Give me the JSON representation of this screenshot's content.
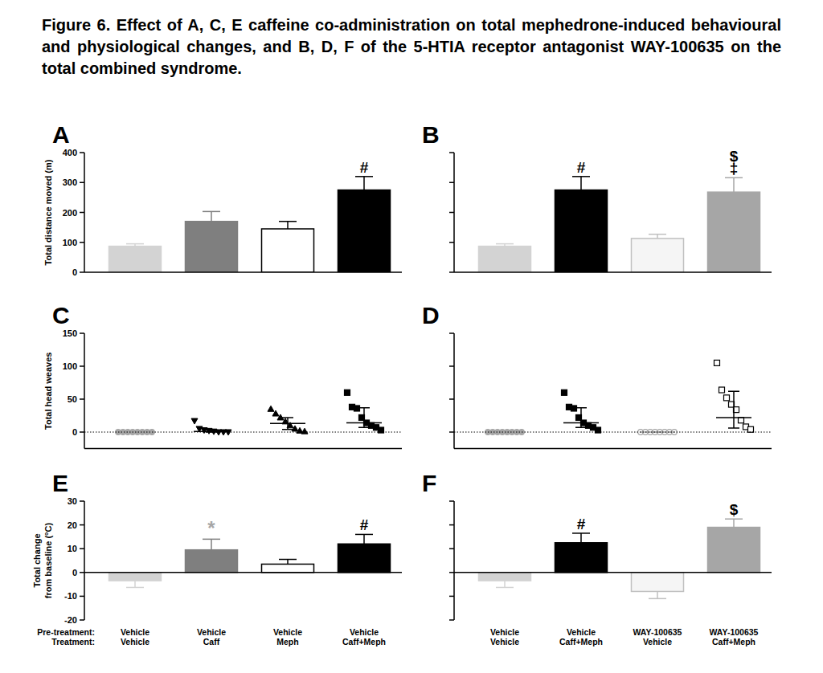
{
  "caption": "Figure 6. Effect of A, C, E caffeine co-administration on total mephedrone-induced behavioural and physiological changes, and B, D, F of the 5-HTIA receptor antagonist WAY-100635 on the total combined syndrome.",
  "chart_data": [
    {
      "type": "bar",
      "label": "A",
      "y_label": [
        "Total distance moved (m)"
      ],
      "categories": [
        "Vehicle",
        "Caff",
        "Meph",
        "Caff+Meph"
      ],
      "pretreatments": [
        "Vehicle",
        "Vehicle",
        "Vehicle",
        "Vehicle"
      ],
      "values": [
        87,
        170,
        145,
        275
      ],
      "errors": [
        8,
        33,
        25,
        45
      ],
      "colors": [
        "#d3d3d3",
        "#7f7f7f",
        "#ffffff",
        "#000000"
      ],
      "ylim": [
        0,
        400
      ],
      "yticks": [
        0,
        100,
        200,
        300,
        400
      ],
      "tick_labels": "y",
      "annotations": [
        null,
        null,
        null,
        {
          "lines": [
            "#"
          ],
          "color": "#000000"
        }
      ]
    },
    {
      "type": "bar",
      "label": "B",
      "categories": [
        "Vehicle",
        "Caff+Meph",
        "Vehicle",
        "Caff+Meph"
      ],
      "pretreatments": [
        "Vehicle",
        "Vehicle",
        "WAY-100635",
        "WAY-100635"
      ],
      "values": [
        87,
        275,
        113,
        268
      ],
      "errors": [
        8,
        45,
        14,
        48
      ],
      "colors": [
        "#d3d3d3",
        "#000000",
        "#f5f5f5",
        "#a6a6a6"
      ],
      "ylim": [
        0,
        400
      ],
      "yticks": [
        0,
        100,
        200,
        300,
        400
      ],
      "tick_labels": false,
      "annotations": [
        null,
        {
          "lines": [
            "#"
          ],
          "color": "#000000"
        },
        null,
        {
          "lines": [
            "$",
            "‡"
          ],
          "color": "#000000"
        }
      ]
    },
    {
      "type": "scatter",
      "label": "C",
      "y_label": [
        "Total head weaves"
      ],
      "categories": [
        "Vehicle",
        "Caff",
        "Meph",
        "Caff+Meph"
      ],
      "pretreatments": [
        "Vehicle",
        "Vehicle",
        "Vehicle",
        "Vehicle"
      ],
      "points": [
        [
          0,
          0,
          0,
          0,
          0,
          0,
          0,
          0
        ],
        [
          17,
          5,
          3,
          2,
          1,
          0,
          0,
          0
        ],
        [
          35,
          28,
          22,
          16,
          10,
          5,
          2,
          1
        ],
        [
          60,
          38,
          36,
          22,
          14,
          10,
          7,
          3
        ]
      ],
      "center": [
        0,
        1,
        13,
        14
      ],
      "error_low": [
        0,
        0,
        4,
        7
      ],
      "error_high": [
        0,
        4,
        22,
        37
      ],
      "colors": [
        "#a6a6a6",
        "#000000",
        "#000000",
        "#000000"
      ],
      "marker": [
        "circle",
        "triangle-down",
        "triangle-up",
        "square"
      ],
      "ylim": [
        -25,
        150
      ],
      "yticks": [
        0,
        50,
        100,
        150
      ],
      "tick_labels": "y"
    },
    {
      "type": "scatter",
      "label": "D",
      "categories": [
        "Vehicle",
        "Caff+Meph",
        "Vehicle",
        "Caff+Meph"
      ],
      "pretreatments": [
        "Vehicle",
        "Vehicle",
        "WAY-100635",
        "WAY-100635"
      ],
      "points": [
        [
          0,
          0,
          0,
          0,
          0,
          0,
          0,
          0
        ],
        [
          60,
          38,
          36,
          22,
          14,
          10,
          7,
          3
        ],
        [
          0,
          0,
          0,
          0,
          0,
          0,
          0,
          0
        ],
        [
          105,
          64,
          52,
          42,
          34,
          18,
          8,
          4
        ]
      ],
      "center": [
        0,
        14,
        0,
        22
      ],
      "error_low": [
        0,
        7,
        0,
        6
      ],
      "error_high": [
        0,
        37,
        0,
        62
      ],
      "colors": [
        "#a6a6a6",
        "#000000",
        "#a6a6a6",
        "#000000"
      ],
      "marker": [
        "circle",
        "square",
        "circle-open",
        "square-open"
      ],
      "ylim": [
        -25,
        150
      ],
      "yticks": [
        0,
        50,
        100,
        150
      ],
      "tick_labels": false
    },
    {
      "type": "bar",
      "label": "E",
      "y_label": [
        "Total change",
        "from baseline (°C)"
      ],
      "row_labels": [
        "Pre-treatment:",
        "Treatment:"
      ],
      "categories": [
        "Vehicle",
        "Caff",
        "Meph",
        "Caff+Meph"
      ],
      "pretreatments": [
        "Vehicle",
        "Vehicle",
        "Vehicle",
        "Vehicle"
      ],
      "values": [
        -3.5,
        9.5,
        3.5,
        12
      ],
      "errors": [
        2.8,
        4.5,
        2,
        4
      ],
      "colors": [
        "#d3d3d3",
        "#7f7f7f",
        "#ffffff",
        "#000000"
      ],
      "ylim": [
        -20,
        30
      ],
      "yticks": [
        -20,
        -10,
        0,
        10,
        20,
        30
      ],
      "annotations": [
        null,
        {
          "lines": [
            "*"
          ],
          "color": "#a6a6a6"
        },
        null,
        {
          "lines": [
            "#"
          ],
          "color": "#000000"
        }
      ]
    },
    {
      "type": "bar",
      "label": "F",
      "categories": [
        "Vehicle",
        "Caff+Meph",
        "Vehicle",
        "Caff+Meph"
      ],
      "pretreatments": [
        "Vehicle",
        "Vehicle",
        "WAY-100635",
        "WAY-100635"
      ],
      "values": [
        -3.5,
        12.5,
        -8,
        19
      ],
      "errors": [
        2.8,
        4,
        3,
        3.5
      ],
      "colors": [
        "#d3d3d3",
        "#000000",
        "#f5f5f5",
        "#a6a6a6"
      ],
      "ylim": [
        -20,
        30
      ],
      "yticks": [
        -20,
        -10,
        0,
        10,
        20,
        30
      ],
      "tick_labels": "x",
      "annotations": [
        null,
        {
          "lines": [
            "#"
          ],
          "color": "#000000"
        },
        null,
        {
          "lines": [
            "$"
          ],
          "color": "#000000"
        }
      ]
    }
  ]
}
